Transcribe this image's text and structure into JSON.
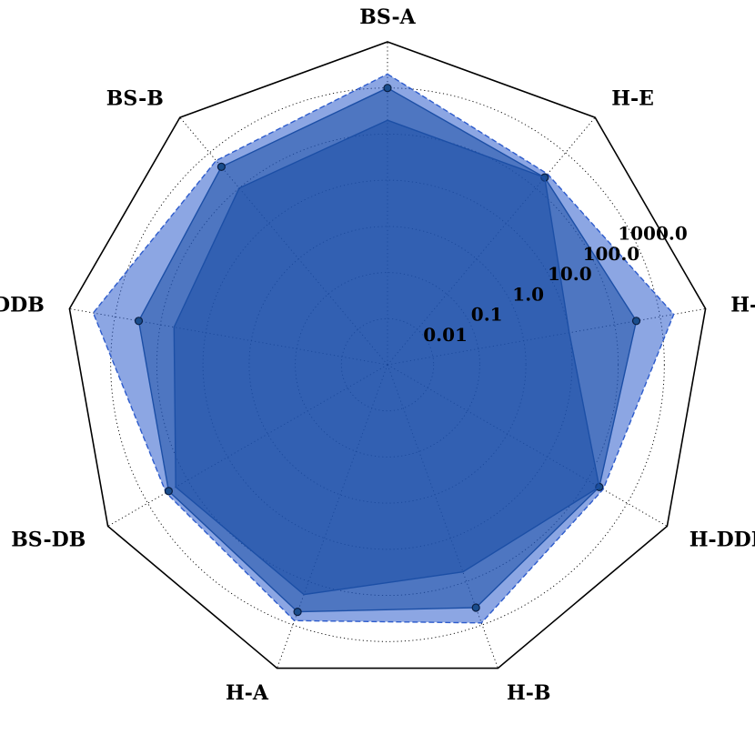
{
  "chart_data": {
    "type": "radar",
    "title": "",
    "scale": "log",
    "grid": true,
    "legend": "none",
    "axes": [
      "BS-A",
      "H-E",
      "H-DB",
      "H-DDB",
      "H-B",
      "H-A",
      "BS-DB",
      "BS-DDB",
      "BS-B"
    ],
    "ticks": [
      0.01,
      0.1,
      1.0,
      10.0,
      100.0,
      1000.0
    ],
    "tick_labels": [
      "0.01",
      "0.1",
      "1.0",
      "10.0",
      "100.0",
      "1000.0"
    ],
    "rlim": [
      0.001,
      10000
    ],
    "series": [
      {
        "values": [
          200,
          200,
          10,
          200,
          60,
          200,
          200,
          50,
          100
        ],
        "color": "#1c4fa6",
        "markers": false
      },
      {
        "values": [
          1000,
          200,
          300,
          200,
          400,
          500,
          300,
          300,
          400
        ],
        "color": "#1c4fa6",
        "markers": true
      },
      {
        "values": [
          2000,
          250,
          2000,
          250,
          900,
          800,
          350,
          3000,
          600
        ],
        "color": "#2e5ccc",
        "markers": false,
        "dashed": true
      }
    ]
  }
}
